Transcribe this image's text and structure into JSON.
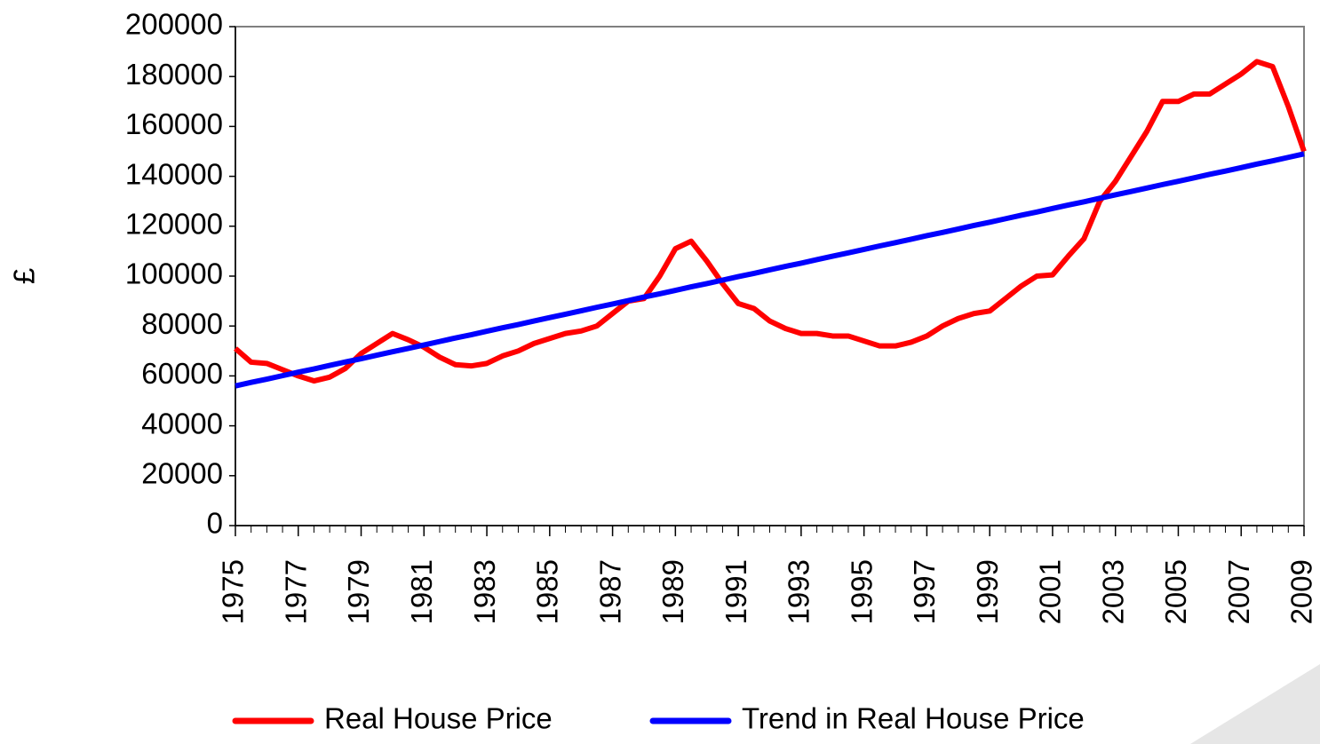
{
  "chart_data": {
    "type": "line",
    "y_label": "£",
    "x": [
      1975,
      1975.5,
      1976,
      1976.5,
      1977,
      1977.5,
      1978,
      1978.5,
      1979,
      1979.5,
      1980,
      1980.5,
      1981,
      1981.5,
      1982,
      1982.5,
      1983,
      1983.5,
      1984,
      1984.5,
      1985,
      1985.5,
      1986,
      1986.5,
      1987,
      1987.5,
      1988,
      1988.5,
      1989,
      1989.5,
      1990,
      1990.5,
      1991,
      1991.5,
      1992,
      1992.5,
      1993,
      1993.5,
      1994,
      1994.5,
      1995,
      1995.5,
      1996,
      1996.5,
      1997,
      1997.5,
      1998,
      1998.5,
      1999,
      1999.5,
      2000,
      2000.5,
      2001,
      2001.5,
      2002,
      2002.5,
      2003,
      2003.5,
      2004,
      2004.5,
      2005,
      2005.5,
      2006,
      2006.5,
      2007,
      2007.5,
      2008,
      2008.5,
      2009
    ],
    "series": [
      {
        "name": "Real House Price",
        "color": "#ff0000",
        "values": [
          71000,
          65500,
          65000,
          62500,
          60000,
          58000,
          59500,
          63000,
          69000,
          73000,
          77000,
          74500,
          71500,
          67500,
          64500,
          64000,
          65000,
          68000,
          70000,
          73000,
          75000,
          77000,
          78000,
          80000,
          85000,
          90000,
          91000,
          100000,
          111000,
          114000,
          106000,
          97000,
          89000,
          87000,
          82000,
          79000,
          77000,
          77000,
          76000,
          76000,
          74000,
          72000,
          72000,
          73500,
          76000,
          80000,
          83000,
          85000,
          86000,
          91000,
          96000,
          100000,
          100500,
          108000,
          115000,
          130000,
          138000,
          148000,
          158000,
          170000,
          170000,
          173000,
          173000,
          177000,
          181000,
          186000,
          184000,
          168000,
          150000
        ]
      },
      {
        "name": "Trend in Real House Price",
        "color": "#0000ff",
        "values": [
          56000,
          57400,
          58700,
          60100,
          61500,
          62800,
          64200,
          65600,
          66900,
          68300,
          69700,
          71000,
          72400,
          73800,
          75200,
          76500,
          77900,
          79300,
          80600,
          82000,
          83400,
          84700,
          86100,
          87500,
          88800,
          90200,
          91600,
          92900,
          94300,
          95700,
          97000,
          98400,
          99800,
          101100,
          102500,
          103900,
          105200,
          106600,
          108000,
          109300,
          110700,
          112100,
          113400,
          114800,
          116200,
          117500,
          118900,
          120300,
          121600,
          123000,
          124400,
          125700,
          127100,
          128500,
          129800,
          131200,
          132600,
          133900,
          135300,
          136700,
          138000,
          139400,
          140800,
          142100,
          143500,
          144900,
          146200,
          147600,
          149000
        ]
      }
    ],
    "xlim": [
      1975,
      2009
    ],
    "xticks": [
      1975,
      1977,
      1979,
      1981,
      1983,
      1985,
      1987,
      1989,
      1991,
      1993,
      1995,
      1997,
      1999,
      2001,
      2003,
      2005,
      2007,
      2009
    ],
    "ylim": [
      0,
      200000
    ],
    "yticks": [
      0,
      20000,
      40000,
      60000,
      80000,
      100000,
      120000,
      140000,
      160000,
      180000,
      200000
    ],
    "legend": "bottom"
  }
}
